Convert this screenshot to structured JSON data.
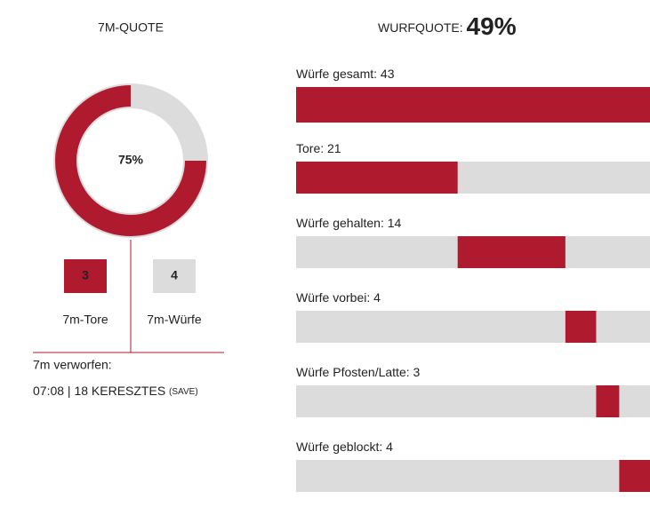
{
  "left": {
    "title": "7M-QUOTE",
    "quote": {
      "value": 75,
      "label": "75%"
    },
    "goals": {
      "value": 3,
      "label": "7m-Tore"
    },
    "attempts": {
      "value": 4,
      "label": "7m-Würfe"
    },
    "missed_title": "7m verworfen:",
    "missed_entry": "07:08 | 18 KERESZTES",
    "missed_tag": "(SAVE)"
  },
  "right": {
    "title": "WURFQUOTE:",
    "quote": {
      "value": 49,
      "label": "49%"
    },
    "total": {
      "label": "Würfe gesamt:",
      "value": 43
    },
    "segments": [
      {
        "label": "Tore:",
        "value": 21
      },
      {
        "label": "Würfe gehalten:",
        "value": 14
      },
      {
        "label": "Würfe vorbei:",
        "value": 4
      },
      {
        "label": "Würfe Pfosten/Latte:",
        "value": 3
      },
      {
        "label": "Würfe geblockt:",
        "value": 4
      }
    ],
    "color": "#b01a2e",
    "track": "#dcdcdc"
  }
}
